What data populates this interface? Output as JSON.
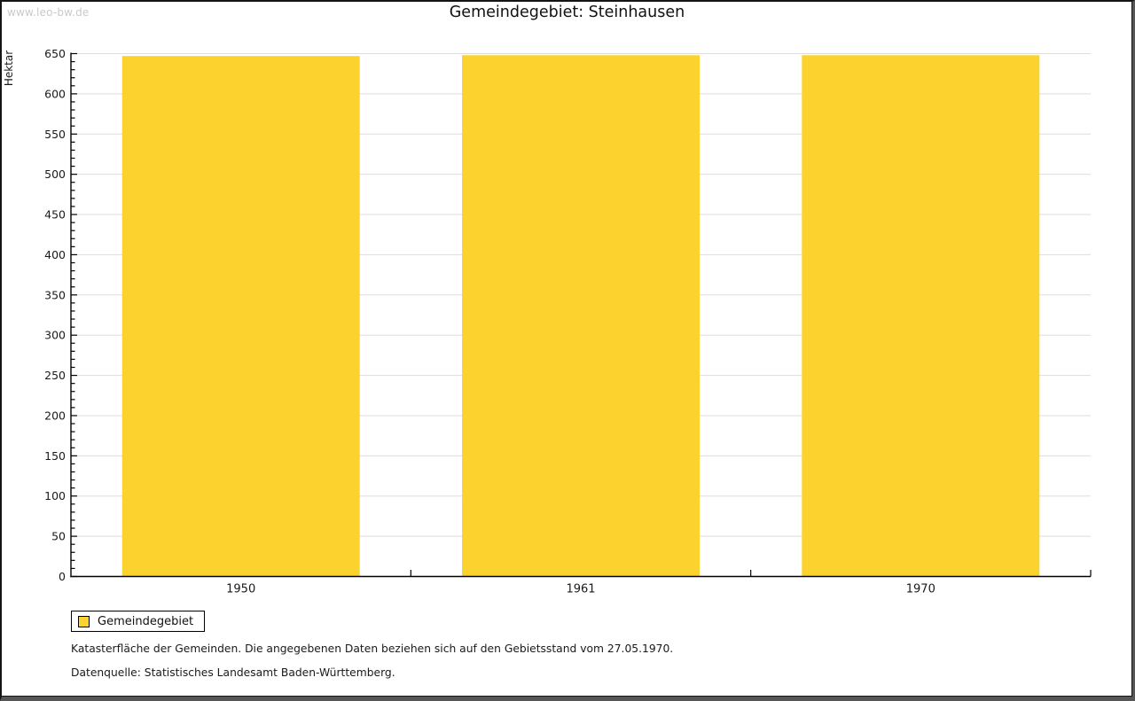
{
  "watermark": "www.leo-bw.de",
  "title": "Gemeindegebiet: Steinhausen",
  "chart_data": {
    "type": "bar",
    "title": "Gemeindegebiet: Steinhausen",
    "categories": [
      "1950",
      "1961",
      "1970"
    ],
    "series": [
      {
        "name": "Gemeindegebiet",
        "values": [
          647,
          648,
          648
        ]
      }
    ],
    "xlabel": "",
    "ylabel": "Hektar",
    "ylim": [
      0,
      650
    ],
    "ytick_step": 50,
    "yminor_step": 10,
    "grid": true,
    "legend_position": "bottom-left",
    "bar_color": "#fcd32e",
    "grid_color": "#dddddd",
    "axis_color": "#000000"
  },
  "legend": {
    "label": "Gemeindegebiet"
  },
  "footnotes": {
    "line1": "Katasterfläche der Gemeinden. Die angegebenen Daten beziehen sich auf den Gebietsstand vom 27.05.1970.",
    "line2": "Datenquelle: Statistisches Landesamt Baden-Württemberg."
  }
}
